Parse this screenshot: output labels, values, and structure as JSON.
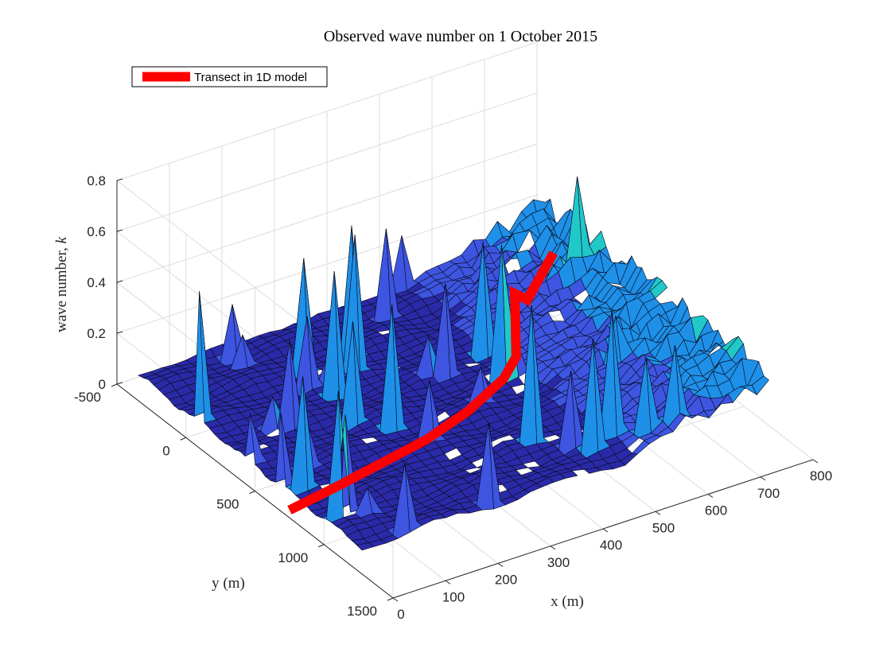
{
  "chart_data": {
    "type": "surface",
    "title": "Observed wave number on 1 October 2015",
    "xlabel": "x (m)",
    "ylabel": "y (m)",
    "zlabel": "wave number, ",
    "zlabel_symbol": "k",
    "xlim": [
      0,
      800
    ],
    "ylim": [
      -500,
      1500
    ],
    "zlim": [
      0,
      0.8
    ],
    "x_ticks": [
      "0",
      "100",
      "200",
      "300",
      "400",
      "500",
      "600",
      "700",
      "800"
    ],
    "y_ticks": [
      "-500",
      "0",
      "500",
      "1000",
      "1500"
    ],
    "z_ticks": [
      "0",
      "0.2",
      "0.4",
      "0.6",
      "0.8"
    ],
    "grid": true,
    "legend_position": "top-left",
    "colormap": [
      "#2a2aa8",
      "#3d55e0",
      "#1e90e8",
      "#20c8c8"
    ],
    "typical_values": {
      "offshore_wave_number": 0.04,
      "nearshore_wave_number_max": 0.25,
      "spike_wave_number_max": 0.6
    },
    "series": [
      {
        "name": "Transect in 1D model",
        "color": "#ff0000",
        "x": [
          0,
          100,
          200,
          300,
          400,
          500,
          550,
          600,
          650,
          700
        ],
        "y": [
          750,
          700,
          650,
          600,
          520,
          400,
          300,
          100,
          0,
          0
        ],
        "z": [
          0.03,
          0.03,
          0.035,
          0.04,
          0.05,
          0.06,
          0.07,
          0.2,
          0.1,
          0.25
        ]
      }
    ]
  }
}
